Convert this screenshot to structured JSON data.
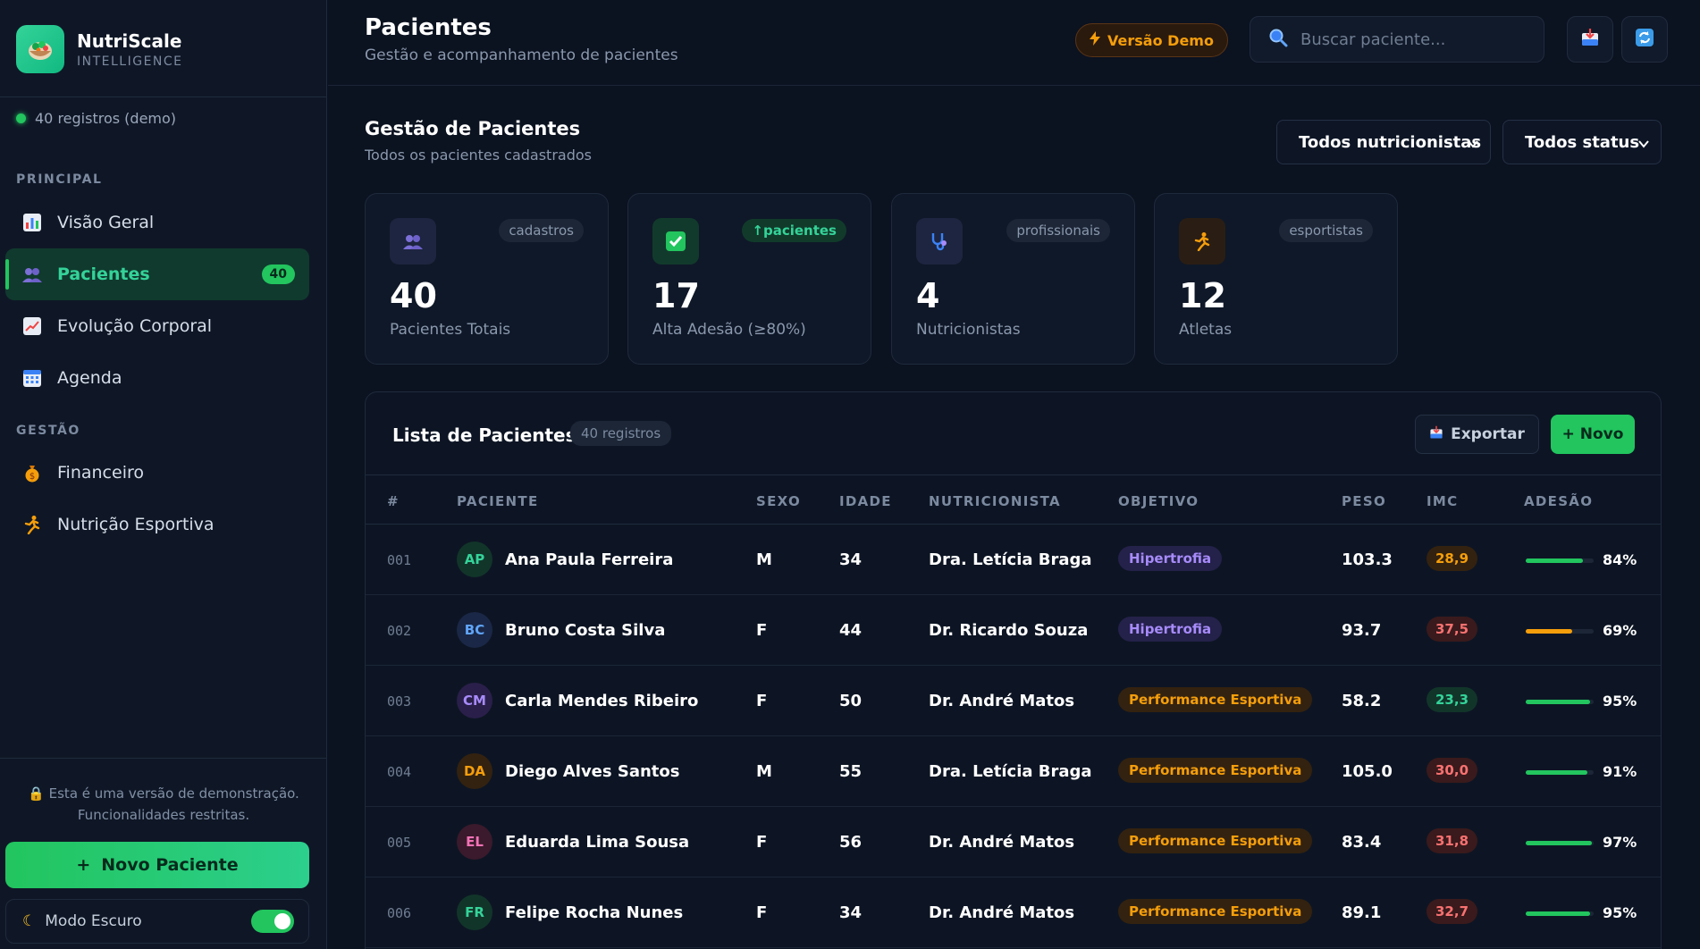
{
  "brand": {
    "name": "NutriScale",
    "sub": "INTELLIGENCE"
  },
  "sidebar": {
    "registros": "40 registros (demo)",
    "section_principal": "PRINCIPAL",
    "section_gestao": "GESTÃO",
    "items": [
      {
        "label": "Visão Geral",
        "icon": "bar-chart-icon"
      },
      {
        "label": "Pacientes",
        "icon": "users-icon",
        "badge": "40"
      },
      {
        "label": "Evolução Corporal",
        "icon": "trend-chart-icon"
      },
      {
        "label": "Agenda",
        "icon": "calendar-icon"
      },
      {
        "label": "Financeiro",
        "icon": "money-bag-icon"
      },
      {
        "label": "Nutrição Esportiva",
        "icon": "runner-icon"
      }
    ],
    "demo_note_1": "Esta é uma versão de demonstração.",
    "demo_note_2": "Funcionalidades restritas.",
    "new_patient": "Novo Paciente",
    "dark_mode": "Modo Escuro"
  },
  "header": {
    "title": "Pacientes",
    "subtitle": "Gestão e acompanhamento de pacientes",
    "demo_chip": "Versão Demo",
    "search_placeholder": "Buscar paciente..."
  },
  "main": {
    "title": "Gestão de Pacientes",
    "subtitle": "Todos os pacientes cadastrados",
    "filter_nutri": "Todos nutricionistas",
    "filter_status": "Todos status"
  },
  "stats": [
    {
      "tag": "cadastros",
      "value": "40",
      "label": "Pacientes Totais"
    },
    {
      "tag": "pacientes",
      "value": "17",
      "label": "Alta Adesão (≥80%)"
    },
    {
      "tag": "profissionais",
      "value": "4",
      "label": "Nutricionistas"
    },
    {
      "tag": "esportistas",
      "value": "12",
      "label": "Atletas"
    }
  ],
  "list": {
    "title": "Lista de Pacientes",
    "count": "40 registros",
    "export": "Exportar",
    "new": "+ Novo",
    "headers": [
      "#",
      "PACIENTE",
      "SEXO",
      "IDADE",
      "NUTRICIONISTA",
      "OBJETIVO",
      "PESO",
      "IMC",
      "ADESÃO"
    ],
    "rows": [
      {
        "num": "001",
        "initials": "AP",
        "name": "Ana Paula Ferreira",
        "sexo": "M",
        "idade": "34",
        "nutri": "Dra. Letícia Braga",
        "objetivo": "Hipertrofia",
        "peso": "103.3",
        "imc": "28,9",
        "adesao": "84%",
        "adesao_value": 84
      },
      {
        "num": "002",
        "initials": "BC",
        "name": "Bruno Costa Silva",
        "sexo": "F",
        "idade": "44",
        "nutri": "Dr. Ricardo Souza",
        "objetivo": "Hipertrofia",
        "peso": "93.7",
        "imc": "37,5",
        "adesao": "69%",
        "adesao_value": 69
      },
      {
        "num": "003",
        "initials": "CM",
        "name": "Carla Mendes Ribeiro",
        "sexo": "F",
        "idade": "50",
        "nutri": "Dr. André Matos",
        "objetivo": "Performance Esportiva",
        "peso": "58.2",
        "imc": "23,3",
        "adesao": "95%",
        "adesao_value": 95
      },
      {
        "num": "004",
        "initials": "DA",
        "name": "Diego Alves Santos",
        "sexo": "M",
        "idade": "55",
        "nutri": "Dra. Letícia Braga",
        "objetivo": "Performance Esportiva",
        "peso": "105.0",
        "imc": "30,0",
        "adesao": "91%",
        "adesao_value": 91
      },
      {
        "num": "005",
        "initials": "EL",
        "name": "Eduarda Lima Sousa",
        "sexo": "F",
        "idade": "56",
        "nutri": "Dr. André Matos",
        "objetivo": "Performance Esportiva",
        "peso": "83.4",
        "imc": "31,8",
        "adesao": "97%",
        "adesao_value": 97
      },
      {
        "num": "006",
        "initials": "FR",
        "name": "Felipe Rocha Nunes",
        "sexo": "F",
        "idade": "34",
        "nutri": "Dr. André Matos",
        "objetivo": "Performance Esportiva",
        "peso": "89.1",
        "imc": "32,7",
        "adesao": "95%",
        "adesao_value": 95
      }
    ]
  },
  "colors": {
    "accent": "#22c55e",
    "warning": "#f59e0b",
    "danger": "#f87171",
    "purple": "#a78bfa"
  }
}
